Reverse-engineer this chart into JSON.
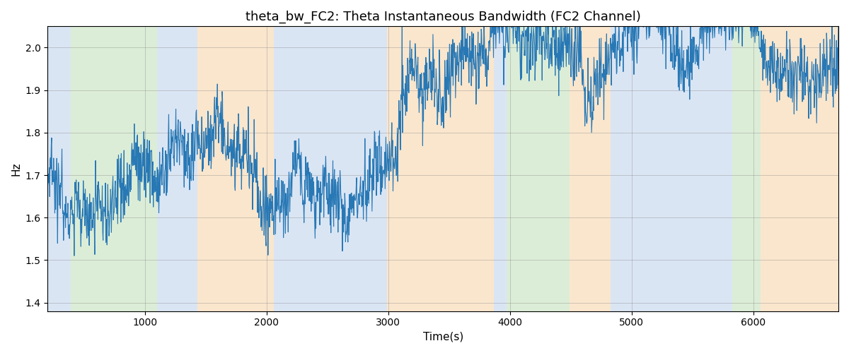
{
  "title": "theta_bw_FC2: Theta Instantaneous Bandwidth (FC2 Channel)",
  "xlabel": "Time(s)",
  "ylabel": "Hz",
  "xlim": [
    200,
    6700
  ],
  "ylim": [
    1.38,
    2.05
  ],
  "yticks": [
    1.4,
    1.5,
    1.6,
    1.7,
    1.8,
    1.9,
    2.0
  ],
  "xticks": [
    1000,
    2000,
    3000,
    4000,
    5000,
    6000
  ],
  "line_color": "#2878b5",
  "line_width": 0.8,
  "mean_value": 1.705,
  "std_value": 0.055,
  "seed": 42,
  "n_points": 2000,
  "background_bands": [
    {
      "xmin": 200,
      "xmax": 390,
      "color": "#adc6e8",
      "alpha": 0.45
    },
    {
      "xmin": 390,
      "xmax": 1100,
      "color": "#b2d8a8",
      "alpha": 0.45
    },
    {
      "xmin": 1100,
      "xmax": 1430,
      "color": "#adc6e8",
      "alpha": 0.45
    },
    {
      "xmin": 1430,
      "xmax": 2060,
      "color": "#f5c990",
      "alpha": 0.45
    },
    {
      "xmin": 2060,
      "xmax": 2990,
      "color": "#adc6e8",
      "alpha": 0.45
    },
    {
      "xmin": 2990,
      "xmax": 3870,
      "color": "#f5c990",
      "alpha": 0.45
    },
    {
      "xmin": 3870,
      "xmax": 3970,
      "color": "#adc6e8",
      "alpha": 0.45
    },
    {
      "xmin": 3970,
      "xmax": 4490,
      "color": "#b2d8a8",
      "alpha": 0.45
    },
    {
      "xmin": 4490,
      "xmax": 4830,
      "color": "#f5c990",
      "alpha": 0.45
    },
    {
      "xmin": 4830,
      "xmax": 5830,
      "color": "#adc6e8",
      "alpha": 0.45
    },
    {
      "xmin": 5830,
      "xmax": 6060,
      "color": "#b2d8a8",
      "alpha": 0.45
    },
    {
      "xmin": 6060,
      "xmax": 6700,
      "color": "#f5c990",
      "alpha": 0.45
    }
  ],
  "figsize": [
    12.0,
    5.0
  ],
  "dpi": 100
}
